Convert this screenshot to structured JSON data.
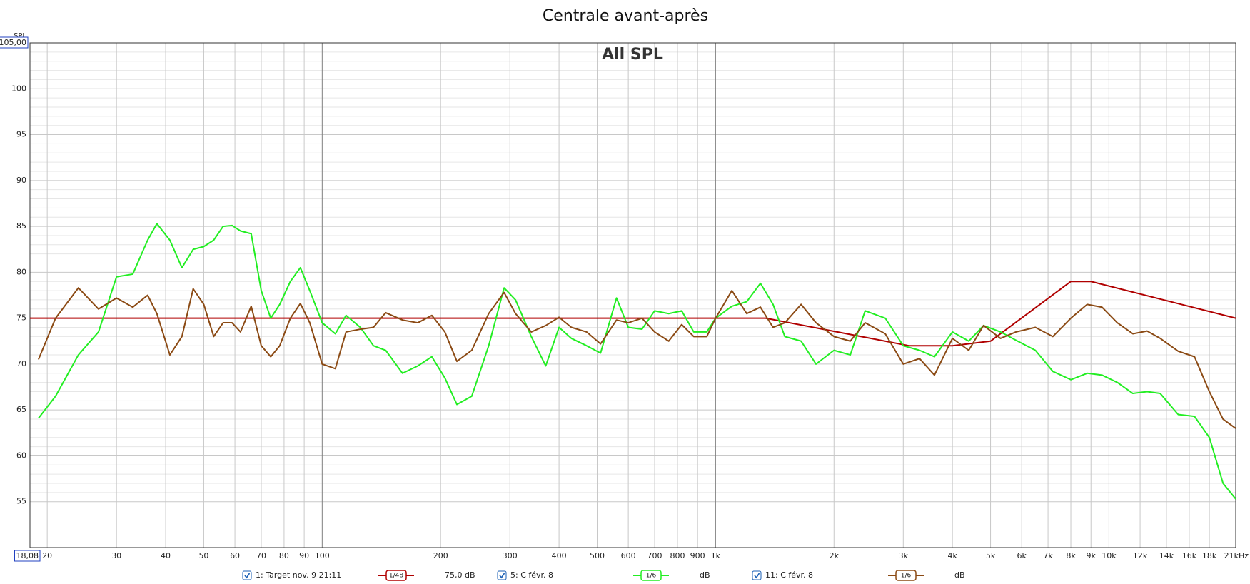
{
  "chart_data": {
    "type": "line",
    "title": "Centrale avant-après",
    "subtitle": "All SPL",
    "ylabel": "SPL",
    "xscale": "log",
    "grid": true,
    "xlim": [
      18.08,
      21000
    ],
    "ylim": [
      50,
      105
    ],
    "yticks": [
      {
        "value": 105,
        "label": "105,00"
      },
      100,
      95,
      90,
      85,
      80,
      75,
      70,
      65,
      60,
      55
    ],
    "xticks": [
      {
        "value": 18.08,
        "label": "18,08"
      },
      20,
      30,
      40,
      50,
      60,
      70,
      80,
      90,
      100,
      200,
      300,
      400,
      500,
      600,
      700,
      800,
      900,
      {
        "value": 1000,
        "label": "1k"
      },
      {
        "value": 2000,
        "label": "2k"
      },
      {
        "value": 3000,
        "label": "3k"
      },
      {
        "value": 4000,
        "label": "4k"
      },
      {
        "value": 5000,
        "label": "5k"
      },
      {
        "value": 6000,
        "label": "6k"
      },
      {
        "value": 7000,
        "label": "7k"
      },
      {
        "value": 8000,
        "label": "8k"
      },
      {
        "value": 9000,
        "label": "9k"
      },
      {
        "value": 10000,
        "label": "10k"
      },
      {
        "value": 12000,
        "label": "12k"
      },
      {
        "value": 14000,
        "label": "14k"
      },
      {
        "value": 16000,
        "label": "16k"
      },
      {
        "value": 18000,
        "label": "18k"
      },
      {
        "value": 21000,
        "label": "21kHz"
      }
    ],
    "series": [
      {
        "name": "1: Target nov. 9 21:11",
        "color": "#b00000",
        "smoothing": "1/48",
        "offset_label": "75,0 dB",
        "x": [
          18.08,
          1340,
          3100,
          4000,
          5000,
          8000,
          9000,
          21000
        ],
        "values": [
          75,
          75,
          72,
          72,
          72.5,
          79,
          79,
          75
        ]
      },
      {
        "name": "5: C févr. 8",
        "color": "#22ee22",
        "smoothing": "1/6",
        "offset_label": "dB",
        "x": [
          19,
          21,
          24,
          27,
          30,
          33,
          36,
          38,
          41,
          44,
          47,
          50,
          53,
          56,
          59,
          62,
          66,
          70,
          74,
          78,
          83,
          88,
          93,
          100,
          108,
          115,
          125,
          135,
          145,
          160,
          175,
          190,
          205,
          220,
          240,
          265,
          290,
          310,
          340,
          370,
          400,
          430,
          470,
          510,
          560,
          600,
          650,
          700,
          760,
          820,
          880,
          950,
          1000,
          1100,
          1200,
          1300,
          1400,
          1500,
          1650,
          1800,
          2000,
          2200,
          2400,
          2700,
          3000,
          3300,
          3600,
          4000,
          4400,
          4800,
          5300,
          5800,
          6500,
          7200,
          8000,
          8800,
          9600,
          10500,
          11500,
          12500,
          13500,
          15000,
          16500,
          18000,
          19500,
          21000
        ],
        "values": [
          64.1,
          66.5,
          71,
          73.5,
          79.5,
          79.8,
          83.5,
          85.3,
          83.5,
          80.5,
          82.5,
          82.8,
          83.5,
          85,
          85.1,
          84.5,
          84.2,
          78,
          75,
          76.5,
          79,
          80.5,
          78,
          74.5,
          73.3,
          75.3,
          74,
          72,
          71.5,
          69,
          69.8,
          70.8,
          68.5,
          65.6,
          66.5,
          72,
          78.3,
          77,
          73,
          69.8,
          74,
          72.8,
          72,
          71.2,
          77.2,
          74,
          73.8,
          75.8,
          75.5,
          75.8,
          73.5,
          73.5,
          75,
          76.3,
          76.8,
          78.8,
          76.5,
          73,
          72.5,
          70,
          71.5,
          71,
          75.8,
          75,
          72,
          71.5,
          70.8,
          73.5,
          72.5,
          74.2,
          73.5,
          72.6,
          71.5,
          69.2,
          68.3,
          69,
          68.8,
          68,
          66.8,
          67,
          66.8,
          64.5,
          64.3,
          62,
          57,
          55.3
        ]
      },
      {
        "name": "11: C févr. 8",
        "color": "#8b4a14",
        "smoothing": "1/6",
        "offset_label": "dB",
        "x": [
          19,
          21,
          24,
          27,
          30,
          33,
          36,
          38,
          41,
          44,
          47,
          50,
          53,
          56,
          59,
          62,
          66,
          70,
          74,
          78,
          83,
          88,
          93,
          100,
          108,
          115,
          125,
          135,
          145,
          160,
          175,
          190,
          205,
          220,
          240,
          265,
          290,
          310,
          340,
          370,
          400,
          430,
          470,
          510,
          560,
          600,
          650,
          700,
          760,
          820,
          880,
          950,
          1000,
          1100,
          1200,
          1300,
          1400,
          1500,
          1650,
          1800,
          2000,
          2200,
          2400,
          2700,
          3000,
          3300,
          3600,
          4000,
          4400,
          4800,
          5300,
          5800,
          6500,
          7200,
          8000,
          8800,
          9600,
          10500,
          11500,
          12500,
          13500,
          15000,
          16500,
          18000,
          19500,
          21000
        ],
        "values": [
          70.5,
          75,
          78.3,
          76,
          77.2,
          76.2,
          77.5,
          75.5,
          71,
          73,
          78.2,
          76.5,
          73,
          74.5,
          74.5,
          73.5,
          76.3,
          72,
          70.8,
          72,
          75,
          76.6,
          74.5,
          70,
          69.5,
          73.5,
          73.8,
          74,
          75.6,
          74.8,
          74.5,
          75.3,
          73.5,
          70.3,
          71.5,
          75.5,
          77.8,
          75.5,
          73.5,
          74.2,
          75.1,
          74,
          73.5,
          72.2,
          74.8,
          74.5,
          75,
          73.5,
          72.5,
          74.3,
          73,
          73,
          75,
          78,
          75.5,
          76.2,
          74,
          74.5,
          76.5,
          74.5,
          73,
          72.5,
          74.5,
          73.3,
          70,
          70.6,
          68.8,
          72.8,
          71.5,
          74.2,
          72.8,
          73.5,
          74,
          73,
          75,
          76.5,
          76.2,
          74.5,
          73.3,
          73.6,
          72.8,
          71.4,
          70.8,
          67,
          64,
          63
        ]
      }
    ]
  }
}
